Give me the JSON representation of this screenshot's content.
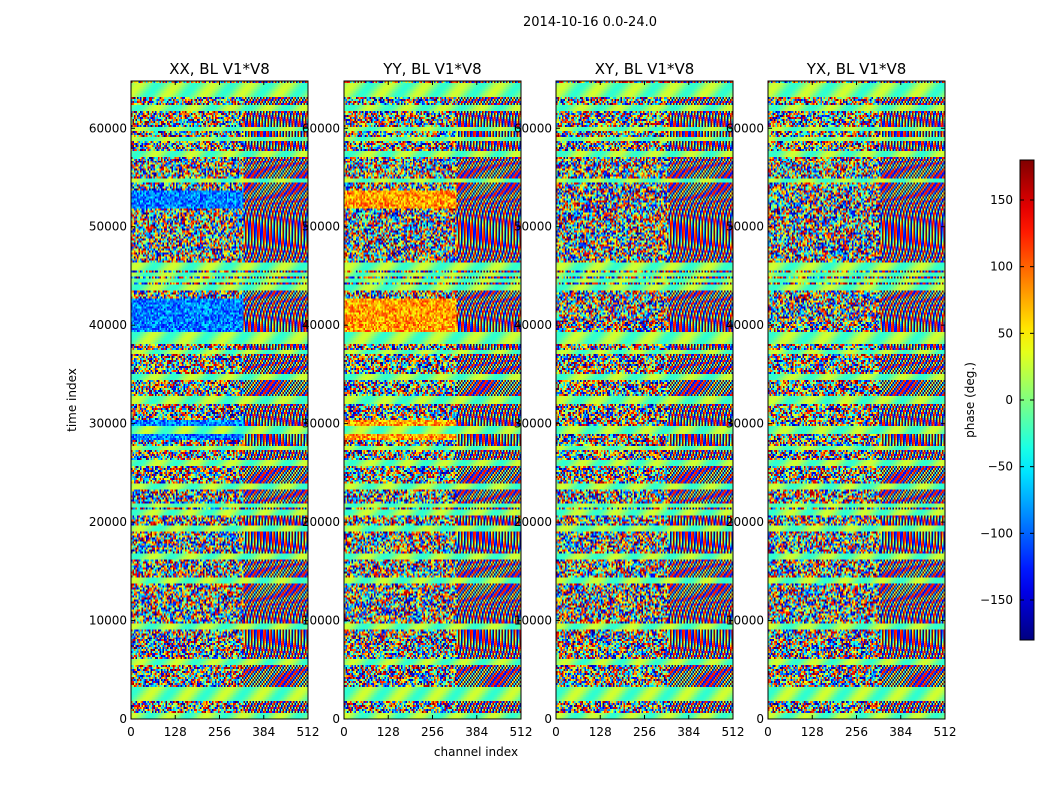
{
  "figure_title": "2014-10-16 0.0-24.0",
  "chart_data": {
    "type": "heatmap",
    "colormap": "jet",
    "xlabel": "channel index",
    "ylabel": "time index",
    "xlim": [
      0,
      512
    ],
    "ylim": [
      0,
      64800
    ],
    "x_ticks": [
      0,
      128,
      256,
      384,
      512
    ],
    "y_ticks": [
      0,
      10000,
      20000,
      30000,
      40000,
      50000,
      60000
    ],
    "colorbar": {
      "label": "phase (deg.)",
      "range": [
        -180,
        180
      ],
      "ticks": [
        -150,
        -100,
        -50,
        0,
        50,
        100,
        150
      ]
    },
    "panels": [
      {
        "title": "XX, BL V1*V8",
        "polarization": "XX"
      },
      {
        "title": "YY, BL V1*V8",
        "polarization": "YY"
      },
      {
        "title": "XY, BL V1*V8",
        "polarization": "XY"
      },
      {
        "title": "YX, BL V1*V8",
        "polarization": "YX"
      }
    ]
  }
}
